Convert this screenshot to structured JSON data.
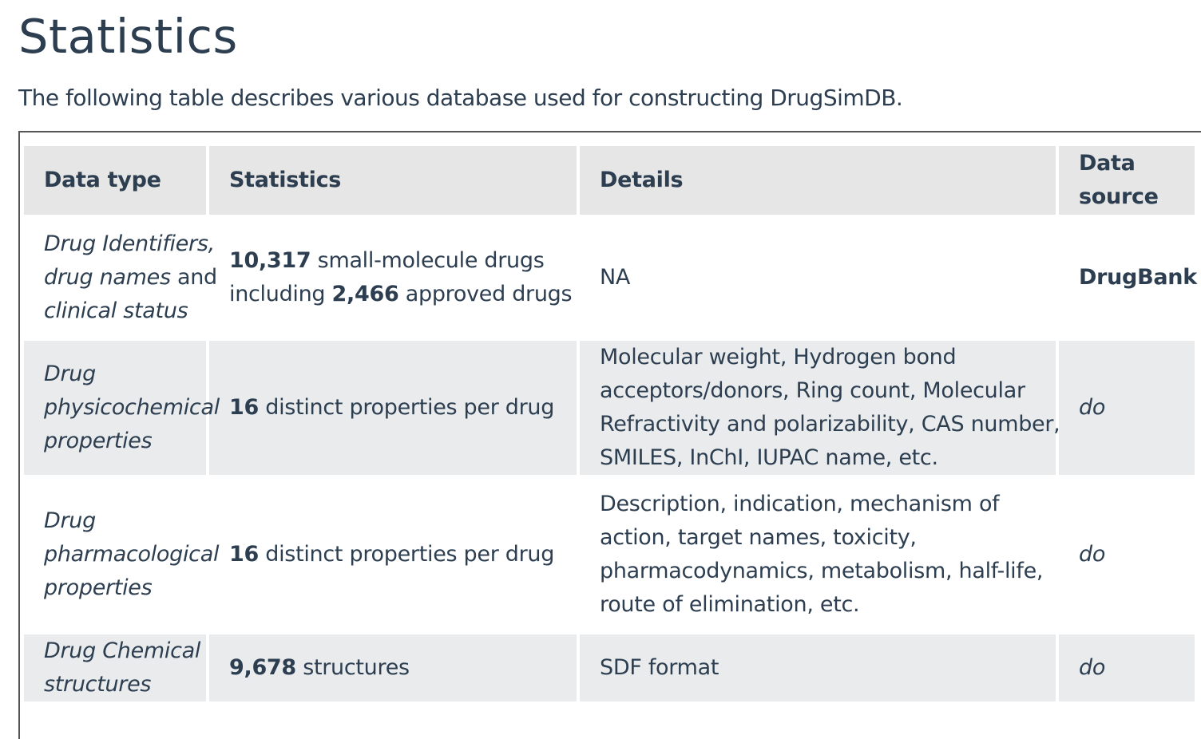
{
  "page": {
    "title": "Statistics",
    "intro": "The following table describes various database used for constructing DrugSimDB."
  },
  "table": {
    "headers": {
      "data_type": "Data type",
      "statistics": "Statistics",
      "details": "Details",
      "data_source_line1": "Data",
      "data_source_line2": "source"
    },
    "rows": [
      {
        "data_type": {
          "line1a": "Drug Identifiers,",
          "line2a": "drug names",
          "line2b": " and",
          "line3": "clinical status"
        },
        "statistics": {
          "n1": "10,317",
          "t1": " small-molecule drugs",
          "t2": "including ",
          "n2": "2,466",
          "t3": " approved drugs"
        },
        "details": {
          "lines": [
            "NA"
          ]
        },
        "source": "DrugBank"
      },
      {
        "data_type": {
          "lines": [
            "Drug",
            "physicochemical",
            "properties"
          ]
        },
        "statistics": {
          "n1": "16",
          "t1": " distinct properties per drug"
        },
        "details": {
          "lines": [
            "Molecular weight, Hydrogen bond",
            "acceptors/donors, Ring count, Molecular",
            "Refractivity and polarizability, CAS number,",
            "SMILES, InChI, IUPAC name, etc."
          ]
        },
        "source": "do"
      },
      {
        "data_type": {
          "lines": [
            "Drug",
            "pharmacological",
            "properties"
          ]
        },
        "statistics": {
          "n1": "16",
          "t1": " distinct properties per drug"
        },
        "details": {
          "lines": [
            "Description, indication, mechanism of",
            "action, target names, toxicity,",
            "pharmacodynamics, metabolism, half-life,",
            "route of elimination, etc."
          ]
        },
        "source": "do"
      },
      {
        "data_type": {
          "lines": [
            "Drug Chemical",
            "structures"
          ]
        },
        "statistics": {
          "n1": "9,678",
          "t1": " structures"
        },
        "details": {
          "lines": [
            "SDF format"
          ]
        },
        "source": "do"
      }
    ]
  }
}
